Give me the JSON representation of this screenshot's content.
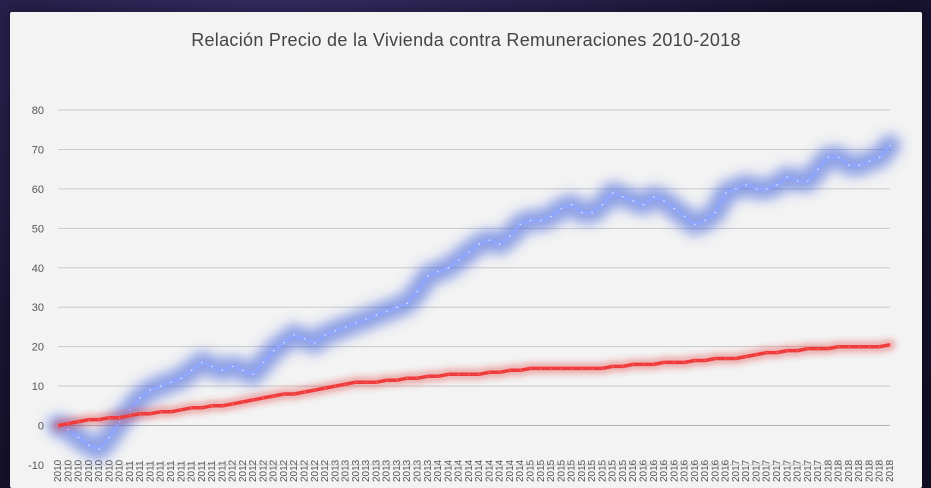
{
  "chart_data": {
    "type": "line",
    "title": "Relación Precio de la Vivienda contra Remuneraciones 2010-2018",
    "xlabel": "",
    "ylabel": "",
    "ylim": [
      -10,
      80
    ],
    "yticks": [
      80,
      70,
      60,
      50,
      40,
      30,
      20,
      10,
      0,
      -10
    ],
    "grid": true,
    "legend": "none",
    "x": [
      "2010",
      "2010",
      "2010",
      "2010",
      "2010",
      "2010",
      "2010",
      "2011",
      "2011",
      "2011",
      "2011",
      "2011",
      "2011",
      "2011",
      "2011",
      "2011",
      "2011",
      "2012",
      "2012",
      "2012",
      "2012",
      "2012",
      "2012",
      "2012",
      "2012",
      "2012",
      "2012",
      "2013",
      "2013",
      "2013",
      "2013",
      "2013",
      "2013",
      "2013",
      "2013",
      "2013",
      "2013",
      "2014",
      "2014",
      "2014",
      "2014",
      "2014",
      "2014",
      "2014",
      "2014",
      "2014",
      "2015",
      "2015",
      "2015",
      "2015",
      "2015",
      "2015",
      "2015",
      "2015",
      "2015",
      "2015",
      "2016",
      "2016",
      "2016",
      "2016",
      "2016",
      "2016",
      "2016",
      "2016",
      "2016",
      "2016",
      "2017",
      "2017",
      "2017",
      "2017",
      "2017",
      "2017",
      "2017",
      "2017",
      "2017",
      "2018",
      "2018",
      "2018",
      "2018",
      "2018",
      "2018",
      "2018"
    ],
    "series": [
      {
        "color": "#3b5bdb",
        "values": [
          0,
          -1,
          -3,
          -5,
          -6,
          -3,
          1,
          4,
          7,
          9,
          10,
          11,
          12,
          14,
          16,
          15,
          14,
          15,
          14,
          13,
          16,
          19,
          21,
          23,
          22,
          21,
          23,
          24,
          25,
          26,
          27,
          28,
          29,
          30,
          31,
          34,
          38,
          39,
          40,
          42,
          44,
          46,
          47,
          46,
          48,
          51,
          52,
          52,
          53,
          55,
          56,
          54,
          54,
          56,
          59,
          58,
          57,
          56,
          58,
          57,
          55,
          53,
          51,
          52,
          54,
          59,
          60,
          61,
          60,
          60,
          61,
          63,
          62,
          62,
          65,
          68,
          68,
          66,
          66,
          67,
          68,
          71
        ]
      },
      {
        "color": "#e03131",
        "values": [
          0,
          0.5,
          1,
          1.5,
          1.5,
          2,
          2,
          2.5,
          3,
          3,
          3.5,
          3.5,
          4,
          4.5,
          4.5,
          5,
          5,
          5.5,
          6,
          6.5,
          7,
          7.5,
          8,
          8,
          8.5,
          9,
          9.5,
          10,
          10.5,
          11,
          11,
          11,
          11.5,
          11.5,
          12,
          12,
          12.5,
          12.5,
          13,
          13,
          13,
          13,
          13.5,
          13.5,
          14,
          14,
          14.5,
          14.5,
          14.5,
          14.5,
          14.5,
          14.5,
          14.5,
          14.5,
          15,
          15,
          15.5,
          15.5,
          15.5,
          16,
          16,
          16,
          16.5,
          16.5,
          17,
          17,
          17,
          17.5,
          18,
          18.5,
          18.5,
          19,
          19,
          19.5,
          19.5,
          19.5,
          20,
          20,
          20,
          20,
          20,
          20.5
        ]
      }
    ]
  }
}
